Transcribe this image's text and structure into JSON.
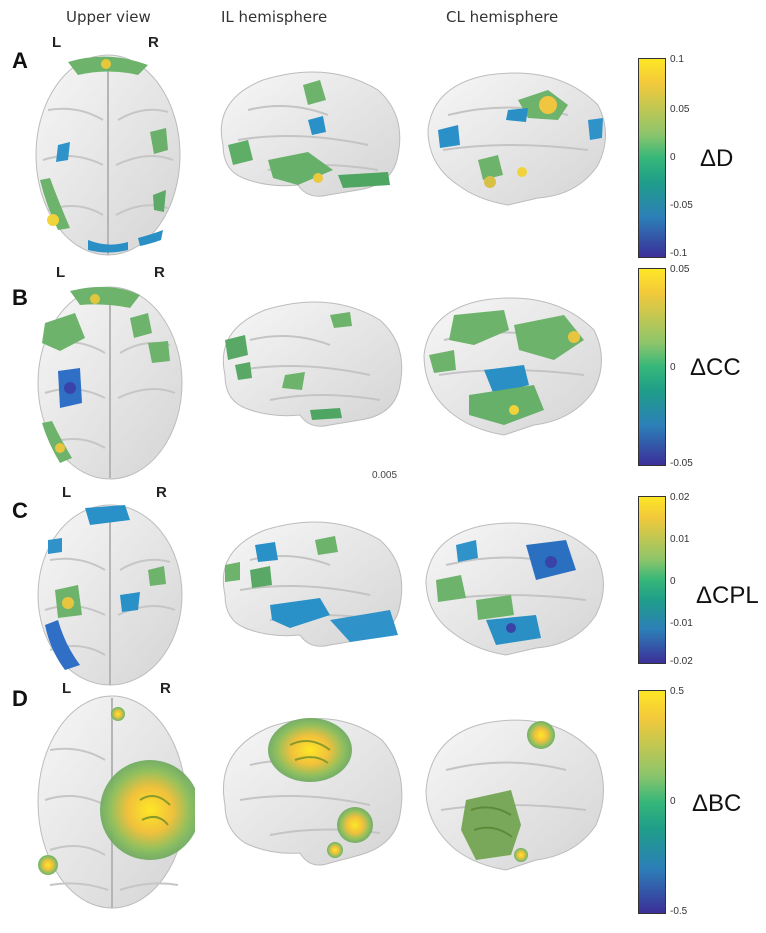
{
  "headers": {
    "upper": "Upper view",
    "il": "IL hemisphere",
    "cl": "CL hemisphere"
  },
  "side_labels": {
    "left": "L",
    "right": "R"
  },
  "stray_label": "0.005",
  "panels": [
    {
      "letter": "A",
      "metric": "ΔD",
      "ticks": [
        "0.1",
        "0.05",
        "0",
        "-0.05",
        "-0.1"
      ]
    },
    {
      "letter": "B",
      "metric": "ΔCC",
      "ticks": [
        "0.05",
        "0",
        "-0.05"
      ]
    },
    {
      "letter": "C",
      "metric": "ΔCPL",
      "ticks": [
        "0.02",
        "0.01",
        "0",
        "-0.01",
        "-0.02"
      ]
    },
    {
      "letter": "D",
      "metric": "ΔBC",
      "ticks": [
        "0.5",
        "0",
        "-0.5"
      ]
    }
  ],
  "colors": {
    "high": "#fde725",
    "mid": "#35b779",
    "low": "#3b2f98",
    "brain": "#e9e9e9"
  },
  "icons": [
    "brain-upper-view",
    "brain-il-hemisphere",
    "brain-cl-hemisphere"
  ]
}
